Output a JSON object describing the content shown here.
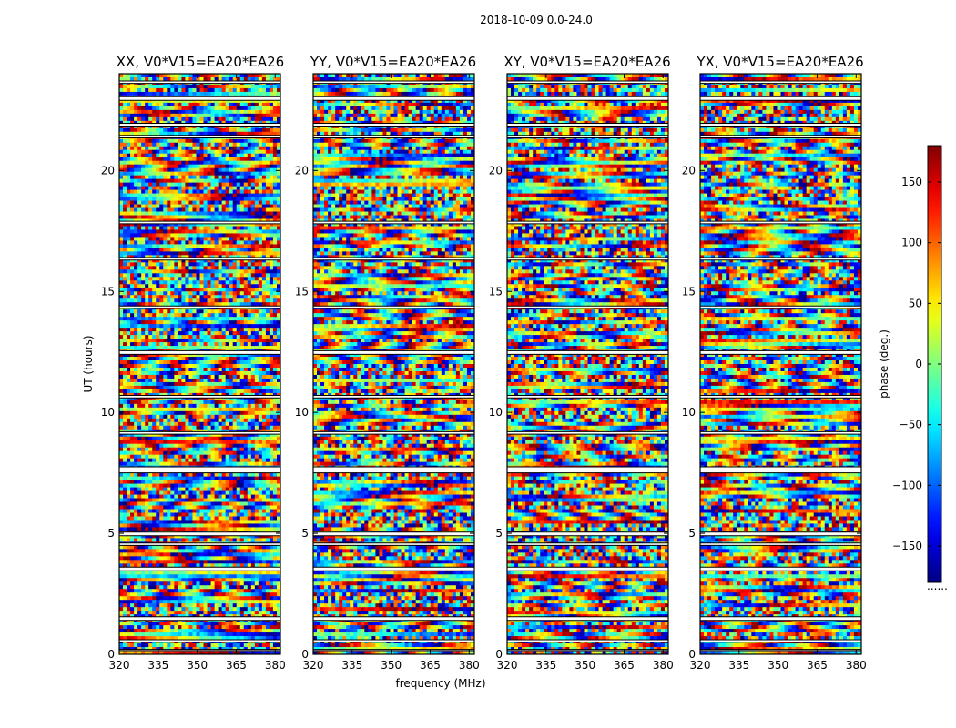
{
  "figure": {
    "suptitle": "2018-10-09 0.0-24.0"
  },
  "chart_data": {
    "type": "heatmap",
    "xlabel": "frequency (MHz)",
    "ylabel": "UT (hours)",
    "xlim": [
      320,
      382
    ],
    "ylim": [
      0,
      24
    ],
    "xticks": [
      320,
      335,
      350,
      365,
      380
    ],
    "yticks": [
      0,
      5,
      10,
      15,
      20
    ],
    "colormap": "jet",
    "colorbar": {
      "label": "phase (deg.)",
      "range": [
        -180,
        180
      ],
      "ticks": [
        150,
        100,
        50,
        0,
        -50,
        -100,
        -150
      ],
      "tick_labels": [
        "150",
        "100",
        "50",
        "0",
        "−50",
        "−100",
        "−150"
      ],
      "extra_text": "......"
    },
    "panels": [
      {
        "title": "XX, V0*V15=EA20*EA26"
      },
      {
        "title": "YY, V0*V15=EA20*EA26"
      },
      {
        "title": "XY, V0*V15=EA20*EA26"
      },
      {
        "title": "YX, V0*V15=EA20*EA26"
      }
    ],
    "gap_bands_hours": [
      [
        0.15,
        0.2
      ],
      [
        0.5,
        0.6
      ],
      [
        1.4,
        1.55
      ],
      [
        3.45,
        3.6
      ],
      [
        4.5,
        4.6
      ],
      [
        4.9,
        5.05
      ],
      [
        7.5,
        7.75
      ],
      [
        9.1,
        9.2
      ],
      [
        10.6,
        10.7
      ],
      [
        12.4,
        12.55
      ],
      [
        14.3,
        14.4
      ],
      [
        16.3,
        16.4
      ],
      [
        17.8,
        17.9
      ],
      [
        21.35,
        21.45
      ],
      [
        22.9,
        23.05
      ],
      [
        23.6,
        23.7
      ],
      [
        21.8,
        21.95
      ]
    ]
  }
}
